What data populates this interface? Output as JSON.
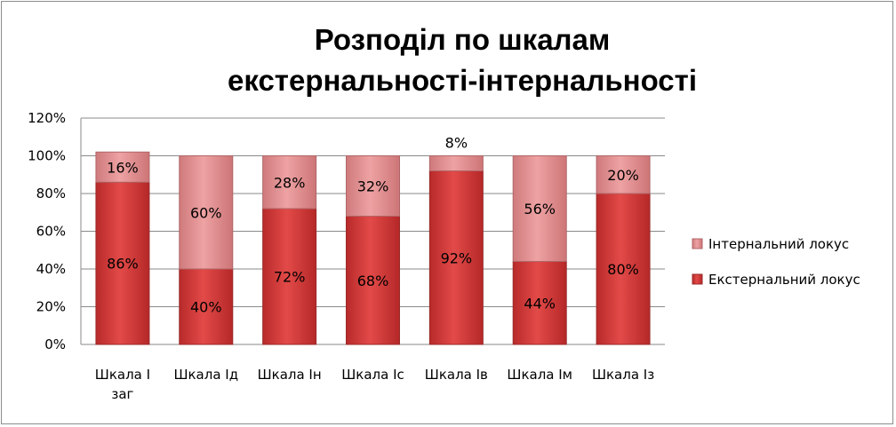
{
  "chart_data": {
    "type": "bar",
    "stacked": true,
    "title_lines": [
      "Розподіл по шкалам",
      "екстернальності-інтернальності"
    ],
    "categories": [
      [
        "Шкала І",
        "заг"
      ],
      [
        "Шкала Ід"
      ],
      [
        "Шкала Ін"
      ],
      [
        "Шкала Іс"
      ],
      [
        "Шкала Ів"
      ],
      [
        "Шкала Ім"
      ],
      [
        "Шкала Із"
      ]
    ],
    "series": [
      {
        "name": "Екстернальний локус",
        "values": [
          86,
          40,
          72,
          68,
          92,
          44,
          80
        ],
        "labels": [
          "86%",
          "40%",
          "72%",
          "68%",
          "92%",
          "44%",
          "80%"
        ],
        "color": "#d23c3c"
      },
      {
        "name": "Інтернальний локус",
        "values": [
          16,
          60,
          28,
          32,
          8,
          56,
          20
        ],
        "labels": [
          "16%",
          "60%",
          "28%",
          "32%",
          "8%",
          "56%",
          "20%"
        ],
        "color": "#e39496"
      }
    ],
    "y_ticks": [
      "0%",
      "20%",
      "40%",
      "60%",
      "80%",
      "100%",
      "120%"
    ],
    "ylim": [
      0,
      120
    ],
    "grid": true,
    "legend_position": "right",
    "legend_order": [
      "Інтернальний локус",
      "Екстернальний локус"
    ]
  }
}
